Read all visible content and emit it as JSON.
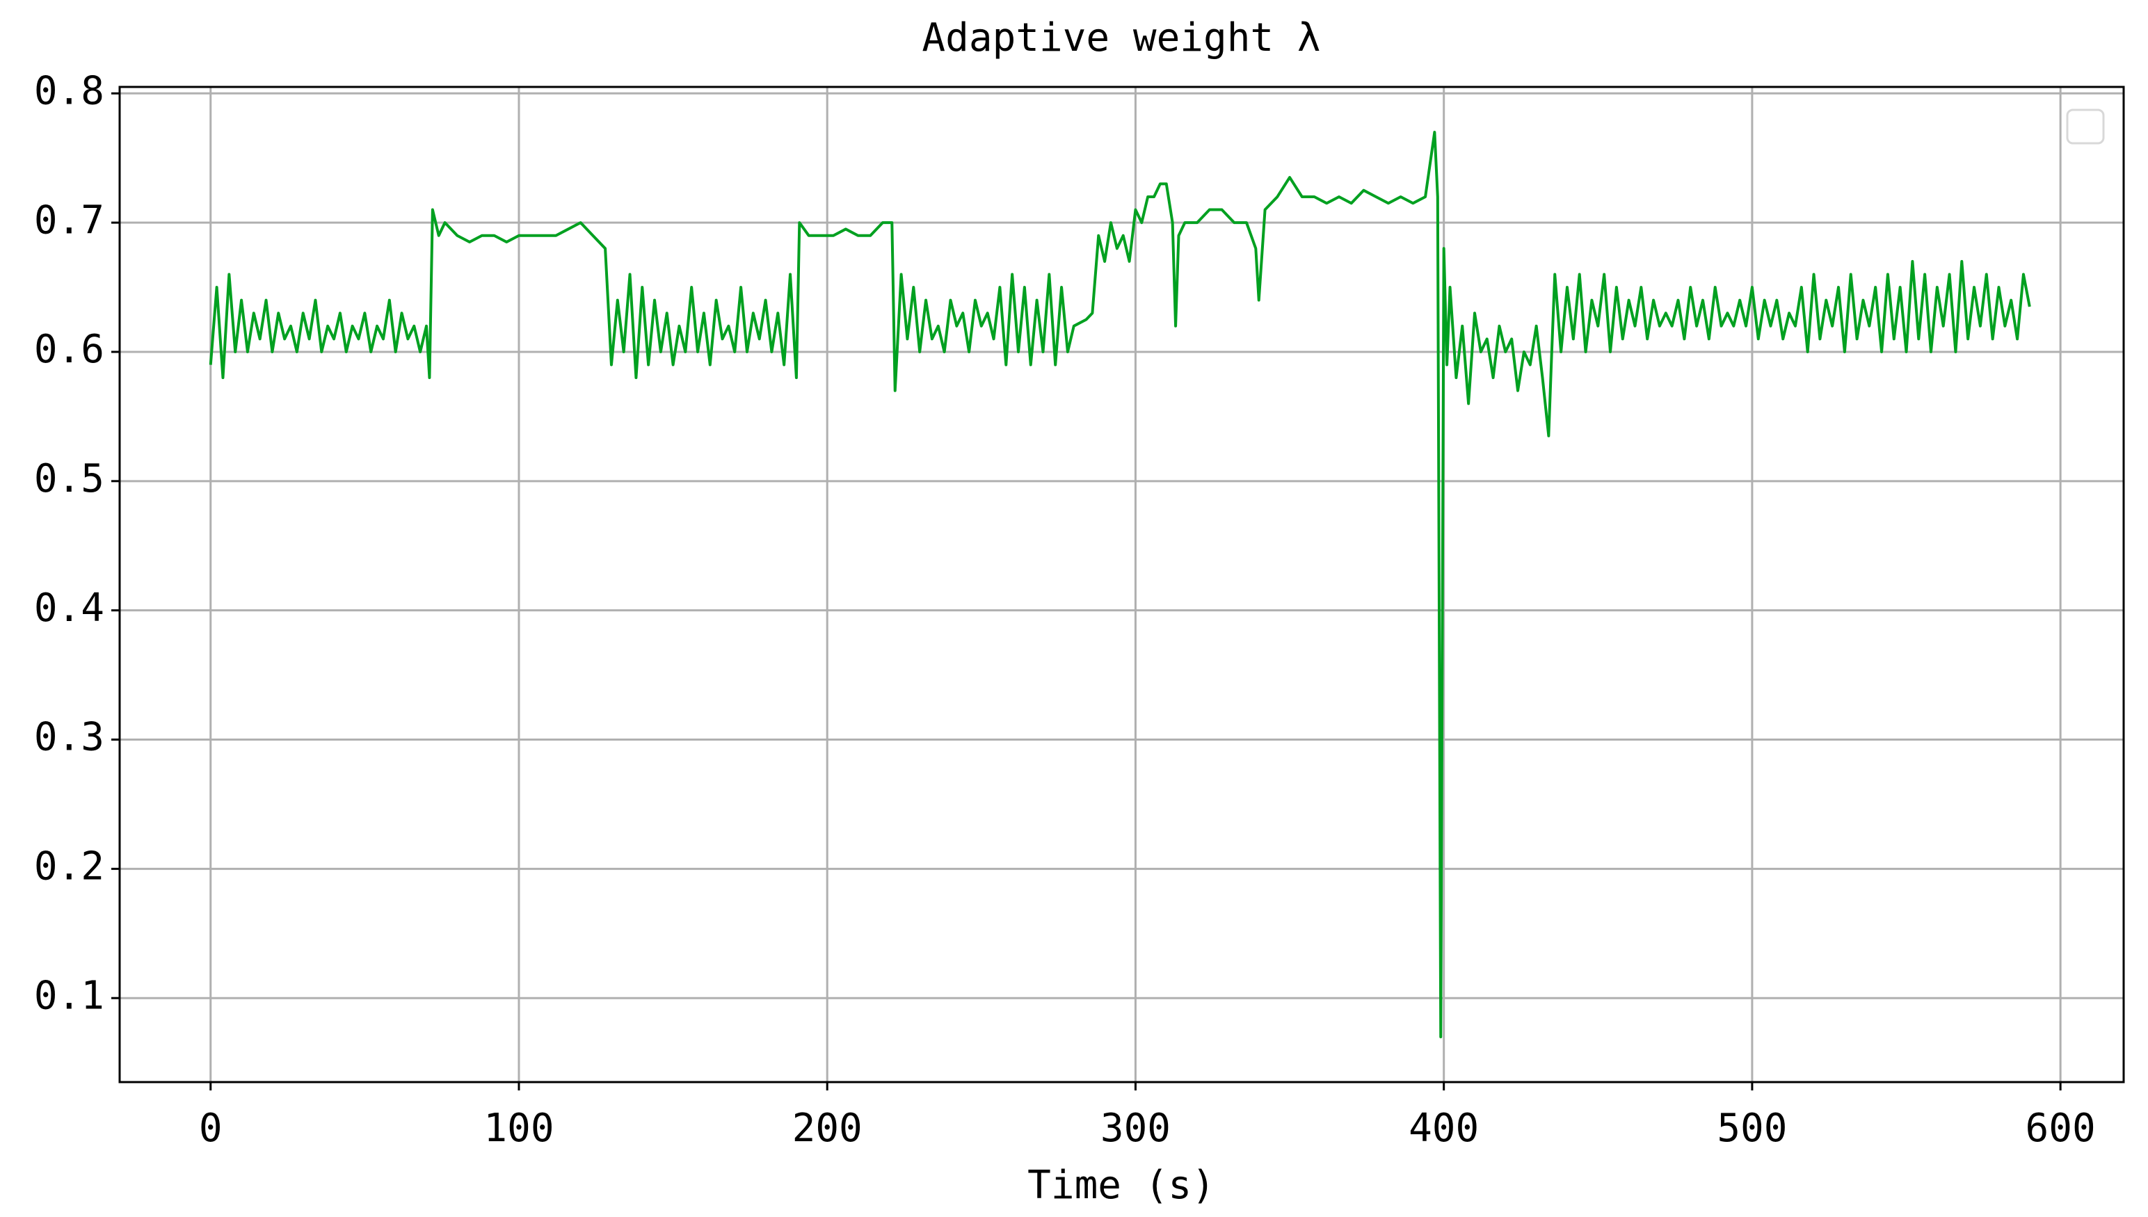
{
  "chart_data": {
    "type": "line",
    "title": "Adaptive weight λ",
    "x_label": "Time (s)",
    "color": "#00a020",
    "grid": true,
    "xlim": [
      -29.5,
      620.5
    ],
    "xticks": [
      0,
      100,
      200,
      300,
      400,
      500,
      600
    ],
    "ylim": [
      0.035,
      0.805
    ],
    "yticks": [
      0.1,
      0.2,
      0.3,
      0.4,
      0.5,
      0.6,
      0.7,
      0.8
    ],
    "x": [
      0,
      2,
      4,
      6,
      8,
      10,
      12,
      14,
      16,
      18,
      20,
      22,
      24,
      26,
      28,
      30,
      32,
      34,
      36,
      38,
      40,
      42,
      44,
      46,
      48,
      50,
      52,
      54,
      56,
      58,
      60,
      62,
      64,
      66,
      68,
      70,
      71,
      72,
      74,
      76,
      80,
      84,
      88,
      92,
      96,
      100,
      104,
      108,
      112,
      116,
      120,
      124,
      128,
      130,
      132,
      134,
      136,
      138,
      140,
      142,
      144,
      146,
      148,
      150,
      152,
      154,
      156,
      158,
      160,
      162,
      164,
      166,
      168,
      170,
      172,
      174,
      176,
      178,
      180,
      182,
      184,
      186,
      188,
      190,
      191,
      194,
      198,
      202,
      206,
      210,
      214,
      218,
      221,
      222,
      224,
      226,
      228,
      230,
      232,
      234,
      236,
      238,
      240,
      242,
      244,
      246,
      248,
      250,
      252,
      254,
      256,
      258,
      260,
      262,
      264,
      266,
      268,
      270,
      272,
      274,
      276,
      278,
      280,
      284,
      286,
      288,
      290,
      292,
      294,
      296,
      298,
      300,
      302,
      304,
      306,
      308,
      310,
      312,
      313,
      314,
      316,
      320,
      324,
      328,
      332,
      336,
      339,
      340,
      342,
      346,
      350,
      354,
      358,
      362,
      366,
      370,
      374,
      378,
      382,
      386,
      390,
      394,
      397,
      398,
      399,
      400,
      401,
      402,
      404,
      406,
      408,
      410,
      412,
      414,
      416,
      418,
      420,
      422,
      424,
      426,
      428,
      430,
      432,
      434,
      435,
      436,
      438,
      440,
      442,
      444,
      446,
      448,
      450,
      452,
      454,
      456,
      458,
      460,
      462,
      464,
      466,
      468,
      470,
      472,
      474,
      476,
      478,
      480,
      482,
      484,
      486,
      488,
      490,
      492,
      494,
      496,
      498,
      500,
      502,
      504,
      506,
      508,
      510,
      512,
      514,
      516,
      518,
      520,
      522,
      524,
      526,
      528,
      530,
      532,
      534,
      536,
      538,
      540,
      542,
      544,
      546,
      548,
      550,
      552,
      554,
      556,
      558,
      560,
      562,
      564,
      566,
      568,
      570,
      572,
      574,
      576,
      578,
      580,
      582,
      584,
      586,
      588,
      590
    ],
    "values": [
      0.59,
      0.65,
      0.58,
      0.66,
      0.6,
      0.64,
      0.6,
      0.63,
      0.61,
      0.64,
      0.6,
      0.63,
      0.61,
      0.62,
      0.6,
      0.63,
      0.61,
      0.64,
      0.6,
      0.62,
      0.61,
      0.63,
      0.6,
      0.62,
      0.61,
      0.63,
      0.6,
      0.62,
      0.61,
      0.64,
      0.6,
      0.63,
      0.61,
      0.62,
      0.6,
      0.62,
      0.58,
      0.71,
      0.69,
      0.7,
      0.69,
      0.685,
      0.69,
      0.69,
      0.685,
      0.69,
      0.69,
      0.69,
      0.69,
      0.695,
      0.7,
      0.69,
      0.68,
      0.59,
      0.64,
      0.6,
      0.66,
      0.58,
      0.65,
      0.59,
      0.64,
      0.6,
      0.63,
      0.59,
      0.62,
      0.6,
      0.65,
      0.6,
      0.63,
      0.59,
      0.64,
      0.61,
      0.62,
      0.6,
      0.65,
      0.6,
      0.63,
      0.61,
      0.64,
      0.6,
      0.63,
      0.59,
      0.66,
      0.58,
      0.7,
      0.69,
      0.69,
      0.69,
      0.695,
      0.69,
      0.69,
      0.7,
      0.7,
      0.57,
      0.66,
      0.61,
      0.65,
      0.6,
      0.64,
      0.61,
      0.62,
      0.6,
      0.64,
      0.62,
      0.63,
      0.6,
      0.64,
      0.62,
      0.63,
      0.61,
      0.65,
      0.59,
      0.66,
      0.6,
      0.65,
      0.59,
      0.64,
      0.6,
      0.66,
      0.59,
      0.65,
      0.6,
      0.62,
      0.625,
      0.63,
      0.69,
      0.67,
      0.7,
      0.68,
      0.69,
      0.67,
      0.71,
      0.7,
      0.72,
      0.72,
      0.73,
      0.73,
      0.7,
      0.62,
      0.69,
      0.7,
      0.7,
      0.71,
      0.71,
      0.7,
      0.7,
      0.68,
      0.64,
      0.71,
      0.72,
      0.735,
      0.72,
      0.72,
      0.715,
      0.72,
      0.715,
      0.725,
      0.72,
      0.715,
      0.72,
      0.715,
      0.72,
      0.77,
      0.72,
      0.07,
      0.68,
      0.59,
      0.65,
      0.58,
      0.62,
      0.56,
      0.63,
      0.6,
      0.61,
      0.58,
      0.62,
      0.6,
      0.61,
      0.57,
      0.6,
      0.59,
      0.62,
      0.58,
      0.535,
      0.6,
      0.66,
      0.6,
      0.65,
      0.61,
      0.66,
      0.6,
      0.64,
      0.62,
      0.66,
      0.6,
      0.65,
      0.61,
      0.64,
      0.62,
      0.65,
      0.61,
      0.64,
      0.62,
      0.63,
      0.62,
      0.64,
      0.61,
      0.65,
      0.62,
      0.64,
      0.61,
      0.65,
      0.62,
      0.63,
      0.62,
      0.64,
      0.62,
      0.65,
      0.61,
      0.64,
      0.62,
      0.64,
      0.61,
      0.63,
      0.62,
      0.65,
      0.6,
      0.66,
      0.61,
      0.64,
      0.62,
      0.65,
      0.6,
      0.66,
      0.61,
      0.64,
      0.62,
      0.65,
      0.6,
      0.66,
      0.61,
      0.65,
      0.6,
      0.67,
      0.61,
      0.66,
      0.6,
      0.65,
      0.62,
      0.66,
      0.6,
      0.67,
      0.61,
      0.65,
      0.62,
      0.66,
      0.61,
      0.65,
      0.62,
      0.64,
      0.61,
      0.66,
      0.635
    ]
  }
}
